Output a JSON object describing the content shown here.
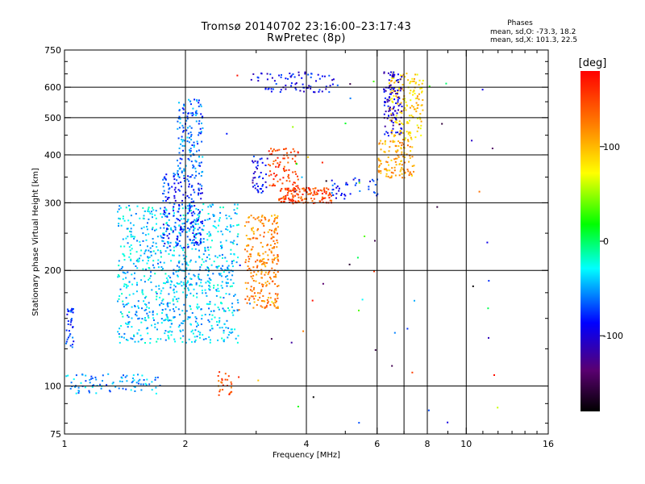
{
  "chart_data": {
    "type": "scatter",
    "title": "Tromsø 20140702 23:16:00–23:17:43",
    "subtitle": "RwPretec (8p)",
    "xlabel": "Frequency [MHz]",
    "ylabel": "Stationary phase Virtual Height [km]",
    "x_scale": "log",
    "y_scale": "log",
    "xlim": [
      1,
      16
    ],
    "ylim": [
      75,
      750
    ],
    "x_ticks": [
      1,
      2,
      4,
      6,
      8,
      10,
      16
    ],
    "y_ticks": [
      75,
      100,
      200,
      300,
      400,
      500,
      600,
      750
    ],
    "grid_x": [
      2,
      4,
      6,
      7,
      8,
      10
    ],
    "grid_y": [
      100,
      200,
      300,
      400,
      500,
      600
    ],
    "colorbar": {
      "label": "[deg]",
      "range": [
        -180,
        180
      ],
      "ticks": [
        100,
        0,
        -100
      ],
      "colors": [
        "#000000",
        "#5a0070",
        "#0000ff",
        "#00ffff",
        "#00ff00",
        "#ffff00",
        "#ff8000",
        "#ff0000"
      ]
    },
    "legend": {
      "heading": "Phases",
      "o_mode": "mean, sd,O: -73.3, 18.2",
      "x_mode": "mean, sd,X: 101.3, 22.5"
    },
    "point_clusters": [
      {
        "x_range": [
          1.0,
          1.05
        ],
        "y_range": [
          125,
          160
        ],
        "phase": -80,
        "count": 40
      },
      {
        "x_range": [
          1.0,
          1.75
        ],
        "y_range": [
          96,
          108
        ],
        "phase": -50,
        "count": 90
      },
      {
        "x_range": [
          1.35,
          2.7
        ],
        "y_range": [
          130,
          300
        ],
        "phase": -40,
        "count": 900
      },
      {
        "x_range": [
          1.75,
          2.2
        ],
        "y_range": [
          230,
          360
        ],
        "phase": -80,
        "count": 200
      },
      {
        "x_range": [
          1.9,
          2.2
        ],
        "y_range": [
          350,
          560
        ],
        "phase": -60,
        "count": 150
      },
      {
        "x_range": [
          2.4,
          2.6
        ],
        "y_range": [
          95,
          110
        ],
        "phase": 140,
        "count": 25
      },
      {
        "x_range": [
          2.8,
          3.4
        ],
        "y_range": [
          160,
          280
        ],
        "phase": 120,
        "count": 250
      },
      {
        "x_range": [
          3.4,
          4.6
        ],
        "y_range": [
          300,
          330
        ],
        "phase": 150,
        "count": 150
      },
      {
        "x_range": [
          3.2,
          3.8
        ],
        "y_range": [
          330,
          420
        ],
        "phase": 150,
        "count": 80
      },
      {
        "x_range": [
          2.9,
          3.2
        ],
        "y_range": [
          320,
          400
        ],
        "phase": -90,
        "count": 40
      },
      {
        "x_range": [
          4.6,
          6.0
        ],
        "y_range": [
          310,
          350
        ],
        "phase": -80,
        "count": 40
      },
      {
        "x_range": [
          6.0,
          7.4
        ],
        "y_range": [
          350,
          440
        ],
        "phase": 110,
        "count": 120
      },
      {
        "x_range": [
          6.4,
          7.8
        ],
        "y_range": [
          440,
          660
        ],
        "phase": 90,
        "count": 160
      },
      {
        "x_range": [
          6.2,
          6.9
        ],
        "y_range": [
          450,
          660
        ],
        "phase": -100,
        "count": 110
      },
      {
        "x_range": [
          2.9,
          4.8
        ],
        "y_range": [
          585,
          660
        ],
        "phase": -90,
        "count": 80
      },
      {
        "x_range": [
          2.5,
          12
        ],
        "y_range": [
          80,
          650
        ],
        "phase": 0,
        "count": 60
      }
    ]
  }
}
